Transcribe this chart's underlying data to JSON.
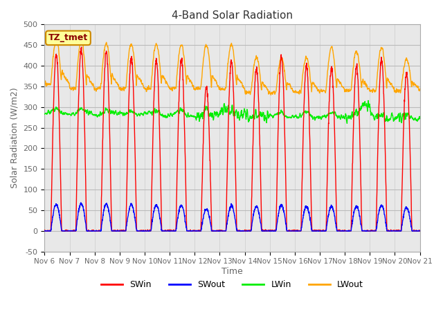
{
  "title": "4-Band Solar Radiation",
  "xlabel": "Time",
  "ylabel": "Solar Radiation (W/m2)",
  "ylim": [
    -50,
    500
  ],
  "colors": {
    "SWin": "#FF0000",
    "SWout": "#0000FF",
    "LWin": "#00EE00",
    "LWout": "#FFA500"
  },
  "xtick_labels": [
    "Nov 6",
    "Nov 7",
    "Nov 8",
    "Nov 9",
    "Nov 10",
    "Nov 11",
    "Nov 12",
    "Nov 13",
    "Nov 14",
    "Nov 15",
    "Nov 16",
    "Nov 17",
    "Nov 18",
    "Nov 19",
    "Nov 20",
    "Nov 21"
  ],
  "ytick_values": [
    -50,
    0,
    50,
    100,
    150,
    200,
    250,
    300,
    350,
    400,
    450,
    500
  ],
  "bg_color": "#E8E8E8",
  "annotation": "TZ_tmet",
  "n_days": 15,
  "pts_per_day": 144
}
